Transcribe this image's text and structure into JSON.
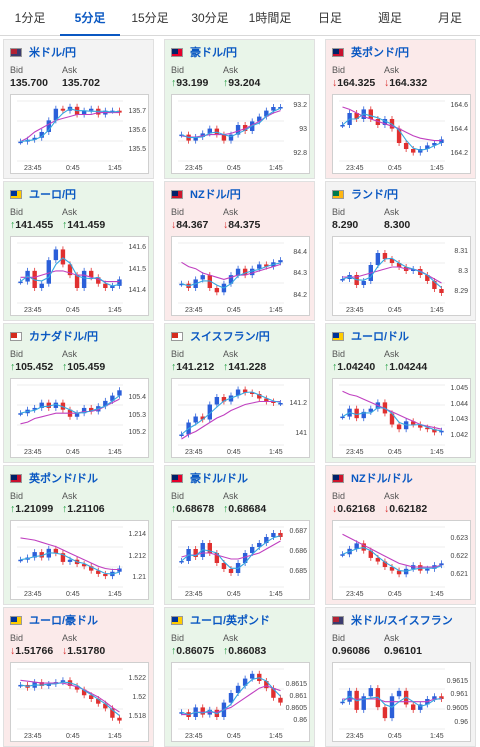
{
  "tabs": [
    "1分足",
    "5分足",
    "15分足",
    "30分足",
    "1時間足",
    "日足",
    "週足",
    "月足"
  ],
  "active_tab": 1,
  "x_labels": [
    "23:45",
    "0:45",
    "1:45"
  ],
  "bid_label": "Bid",
  "ask_label": "Ask",
  "cards": [
    {
      "pair": "米ドル/円",
      "bid": "135.700",
      "ask": "135.702",
      "trend": "flat",
      "arrow": "",
      "ticks": [
        "135.7",
        "135.6",
        "135.5"
      ],
      "flag": "us",
      "ylim": [
        135.45,
        135.76
      ],
      "series": [
        135.55,
        135.56,
        135.57,
        135.6,
        135.66,
        135.72,
        135.71,
        135.73,
        135.69,
        135.71,
        135.72,
        135.69,
        135.71,
        135.71,
        135.7
      ],
      "ma": [
        135.55,
        135.57,
        135.6,
        135.62,
        135.64,
        135.66,
        135.67,
        135.68,
        135.69,
        135.69,
        135.69,
        135.7,
        135.7,
        135.7,
        135.7
      ]
    },
    {
      "pair": "豪ドル/円",
      "bid": "93.199",
      "ask": "93.204",
      "trend": "up",
      "arrow": "↑",
      "ticks": [
        "93.2",
        "93",
        "92.8"
      ],
      "flag": "au",
      "ylim": [
        92.75,
        93.25
      ],
      "series": [
        92.97,
        92.92,
        92.95,
        92.98,
        93.02,
        92.97,
        92.92,
        92.97,
        93.05,
        93.0,
        93.08,
        93.12,
        93.17,
        93.2,
        93.2
      ],
      "ma": [
        92.96,
        92.95,
        92.95,
        92.96,
        92.97,
        92.97,
        92.97,
        92.98,
        93.0,
        93.02,
        93.05,
        93.08,
        93.12,
        93.15,
        93.17
      ]
    },
    {
      "pair": "英ポンド/円",
      "bid": "164.325",
      "ask": "164.332",
      "trend": "down",
      "arrow": "↓",
      "ticks": [
        "164.6",
        "164.4",
        "164.2"
      ],
      "flag": "uk",
      "ylim": [
        164.15,
        164.65
      ],
      "series": [
        164.45,
        164.55,
        164.5,
        164.58,
        164.5,
        164.45,
        164.5,
        164.42,
        164.3,
        164.25,
        164.22,
        164.25,
        164.28,
        164.3,
        164.33
      ],
      "ma": [
        164.6,
        164.58,
        164.55,
        164.52,
        164.5,
        164.48,
        164.46,
        164.44,
        164.42,
        164.39,
        164.36,
        164.34,
        164.33,
        164.32,
        164.32
      ]
    },
    {
      "pair": "ユーロ/円",
      "bid": "141.455",
      "ask": "141.459",
      "trend": "up",
      "arrow": "↑",
      "ticks": [
        "141.6",
        "141.5",
        "141.4"
      ],
      "flag": "eu",
      "ylim": [
        141.35,
        141.63
      ],
      "series": [
        141.45,
        141.5,
        141.42,
        141.44,
        141.55,
        141.6,
        141.53,
        141.48,
        141.42,
        141.5,
        141.47,
        141.44,
        141.42,
        141.43,
        141.46
      ],
      "ma": [
        141.47,
        141.47,
        141.47,
        141.48,
        141.49,
        141.5,
        141.5,
        141.49,
        141.48,
        141.48,
        141.47,
        141.46,
        141.45,
        141.45,
        141.45
      ]
    },
    {
      "pair": "NZドル/円",
      "bid": "84.367",
      "ask": "84.375",
      "trend": "down",
      "arrow": "↓",
      "ticks": [
        "84.4",
        "84.3",
        "84.2"
      ],
      "flag": "nz",
      "ylim": [
        84.17,
        84.45
      ],
      "series": [
        84.26,
        84.24,
        84.28,
        84.3,
        84.24,
        84.22,
        84.26,
        84.3,
        84.33,
        84.3,
        84.33,
        84.35,
        84.34,
        84.36,
        84.37
      ],
      "ma": [
        84.36,
        84.34,
        84.33,
        84.31,
        84.3,
        84.29,
        84.28,
        84.29,
        84.3,
        84.3,
        84.31,
        84.32,
        84.33,
        84.34,
        84.35
      ]
    },
    {
      "pair": "ランド/円",
      "bid": "8.290",
      "ask": "8.300",
      "trend": "flat",
      "arrow": "",
      "ticks": [
        "8.31",
        "8.3",
        "8.29"
      ],
      "flag": "za",
      "ylim": [
        8.285,
        8.315
      ],
      "series": [
        8.297,
        8.299,
        8.294,
        8.296,
        8.304,
        8.31,
        8.307,
        8.305,
        8.303,
        8.301,
        8.302,
        8.299,
        8.296,
        8.292,
        8.29
      ],
      "ma": [
        8.298,
        8.298,
        8.298,
        8.299,
        8.3,
        8.301,
        8.302,
        8.303,
        8.303,
        8.302,
        8.302,
        8.301,
        8.299,
        8.297,
        8.295
      ]
    },
    {
      "pair": "カナダドル/円",
      "bid": "105.452",
      "ask": "105.459",
      "trend": "up",
      "arrow": "↑",
      "ticks": [
        "105.4",
        "105.3",
        "105.2"
      ],
      "flag": "ca",
      "ylim": [
        105.14,
        105.48
      ],
      "series": [
        105.32,
        105.34,
        105.35,
        105.38,
        105.35,
        105.38,
        105.34,
        105.3,
        105.32,
        105.35,
        105.33,
        105.36,
        105.39,
        105.42,
        105.45
      ],
      "ma": [
        105.26,
        105.27,
        105.29,
        105.3,
        105.31,
        105.32,
        105.32,
        105.32,
        105.32,
        105.33,
        105.33,
        105.34,
        105.36,
        105.38,
        105.4
      ]
    },
    {
      "pair": "スイスフラン/円",
      "bid": "141.212",
      "ask": "141.228",
      "trend": "up",
      "arrow": "↑",
      "ticks": [
        "141.2",
        "141"
      ],
      "flag": "ch",
      "ylim": [
        140.93,
        141.33
      ],
      "series": [
        141.0,
        141.08,
        141.12,
        141.1,
        141.2,
        141.25,
        141.22,
        141.26,
        141.3,
        141.28,
        141.27,
        141.24,
        141.22,
        141.21,
        141.21
      ],
      "ma": [
        140.97,
        141.0,
        141.02,
        141.05,
        141.08,
        141.11,
        141.13,
        141.16,
        141.18,
        141.2,
        141.21,
        141.22,
        141.22,
        141.22,
        141.22
      ]
    },
    {
      "pair": "ユーロ/ドル",
      "bid": "1.04240",
      "ask": "1.04244",
      "trend": "up",
      "arrow": "↑",
      "ticks": [
        "1.045",
        "1.044",
        "1.043",
        "1.042"
      ],
      "flag": "eu",
      "ylim": [
        1.0415,
        1.0453
      ],
      "series": [
        1.0433,
        1.0438,
        1.0432,
        1.0436,
        1.0438,
        1.0442,
        1.0435,
        1.0428,
        1.0425,
        1.043,
        1.0428,
        1.0426,
        1.0425,
        1.0423,
        1.0424
      ],
      "ma": [
        1.0449,
        1.0447,
        1.0446,
        1.0444,
        1.0442,
        1.044,
        1.0438,
        1.0436,
        1.0434,
        1.0432,
        1.043,
        1.0428,
        1.0427,
        1.0426,
        1.0425
      ]
    },
    {
      "pair": "英ポンド/ドル",
      "bid": "1.21099",
      "ask": "1.21106",
      "trend": "up",
      "arrow": "↑",
      "ticks": [
        "1.214",
        "1.212",
        "1.21"
      ],
      "flag": "uk",
      "ylim": [
        1.2093,
        1.2148
      ],
      "series": [
        1.2118,
        1.212,
        1.2125,
        1.212,
        1.2128,
        1.2124,
        1.2116,
        1.2118,
        1.2114,
        1.2112,
        1.2108,
        1.2105,
        1.2103,
        1.2107,
        1.211
      ],
      "ma": [
        1.2138,
        1.2137,
        1.2136,
        1.2134,
        1.2132,
        1.213,
        1.2127,
        1.2124,
        1.2121,
        1.2118,
        1.2115,
        1.2112,
        1.211,
        1.2109,
        1.2109
      ]
    },
    {
      "pair": "豪ドル/ドル",
      "bid": "0.68678",
      "ask": "0.68684",
      "trend": "up",
      "arrow": "↑",
      "ticks": [
        "0.687",
        "0.686",
        "0.685"
      ],
      "flag": "au",
      "ylim": [
        0.6843,
        0.6873
      ],
      "series": [
        0.6856,
        0.6862,
        0.6858,
        0.6865,
        0.686,
        0.6855,
        0.6852,
        0.685,
        0.6855,
        0.686,
        0.6863,
        0.6865,
        0.6868,
        0.687,
        0.6868
      ],
      "ma": [
        0.6858,
        0.6859,
        0.6859,
        0.686,
        0.686,
        0.6859,
        0.6858,
        0.6857,
        0.6857,
        0.6858,
        0.6859,
        0.686,
        0.6862,
        0.6864,
        0.6866
      ]
    },
    {
      "pair": "NZドル/ドル",
      "bid": "0.62168",
      "ask": "0.62182",
      "trend": "down",
      "arrow": "↓",
      "ticks": [
        "0.623",
        "0.622",
        "0.621"
      ],
      "flag": "nz",
      "ylim": [
        0.6204,
        0.6237
      ],
      "series": [
        0.6222,
        0.6225,
        0.6228,
        0.6224,
        0.622,
        0.6218,
        0.6215,
        0.6213,
        0.6211,
        0.6214,
        0.6216,
        0.6213,
        0.6214,
        0.6216,
        0.6217
      ],
      "ma": [
        0.6233,
        0.6231,
        0.6229,
        0.6227,
        0.6225,
        0.6223,
        0.6221,
        0.6219,
        0.6217,
        0.6216,
        0.6215,
        0.6215,
        0.6215,
        0.6215,
        0.6216
      ]
    },
    {
      "pair": "ユーロ/豪ドル",
      "bid": "1.51766",
      "ask": "1.51780",
      "trend": "down",
      "arrow": "↓",
      "ticks": [
        "1.522",
        "1.52",
        "1.518"
      ],
      "flag": "eu",
      "ylim": [
        1.5168,
        1.5232
      ],
      "series": [
        1.5215,
        1.5212,
        1.5218,
        1.5214,
        1.5216,
        1.5218,
        1.522,
        1.5214,
        1.521,
        1.5204,
        1.52,
        1.5195,
        1.519,
        1.518,
        1.5177
      ],
      "ma": [
        1.522,
        1.5219,
        1.5218,
        1.5217,
        1.5217,
        1.5217,
        1.5217,
        1.5215,
        1.5213,
        1.521,
        1.5206,
        1.5202,
        1.5197,
        1.5191,
        1.5186
      ]
    },
    {
      "pair": "ユーロ/英ポンド",
      "bid": "0.86075",
      "ask": "0.86083",
      "trend": "up",
      "arrow": "↑",
      "ticks": [
        "0.8615",
        "0.861",
        "0.8605",
        "0.86"
      ],
      "flag": "eu",
      "ylim": [
        0.8597,
        0.8622
      ],
      "series": [
        0.8604,
        0.8602,
        0.8606,
        0.8603,
        0.8605,
        0.8602,
        0.8608,
        0.8612,
        0.8615,
        0.8618,
        0.862,
        0.8617,
        0.8614,
        0.861,
        0.8608
      ],
      "ma": [
        0.8603,
        0.8603,
        0.8604,
        0.8604,
        0.8604,
        0.8604,
        0.8605,
        0.8606,
        0.8608,
        0.861,
        0.8612,
        0.8614,
        0.8615,
        0.8614,
        0.8613
      ]
    },
    {
      "pair": "米ドル/スイスフラン",
      "bid": "0.96086",
      "ask": "0.96101",
      "trend": "flat",
      "arrow": "",
      "ticks": [
        "0.9615",
        "0.961",
        "0.9605",
        "0.96"
      ],
      "flag": "us",
      "ylim": [
        0.9598,
        0.962
      ],
      "series": [
        0.9608,
        0.9612,
        0.9605,
        0.961,
        0.9613,
        0.9606,
        0.9602,
        0.961,
        0.9612,
        0.9607,
        0.9605,
        0.9607,
        0.9609,
        0.961,
        0.9609
      ],
      "ma": [
        0.9609,
        0.9609,
        0.9609,
        0.9609,
        0.9609,
        0.9609,
        0.9608,
        0.9608,
        0.9608,
        0.9608,
        0.9608,
        0.9608,
        0.9608,
        0.9609,
        0.9609
      ]
    }
  ],
  "colors": {
    "up": "#1a9a3a",
    "down": "#d82b2b",
    "accent": "#0a58c2",
    "candle_up": "#2b5fd9",
    "candle_dn": "#e03030",
    "ma": "#c040c0",
    "ma2": "#35a7e0"
  }
}
